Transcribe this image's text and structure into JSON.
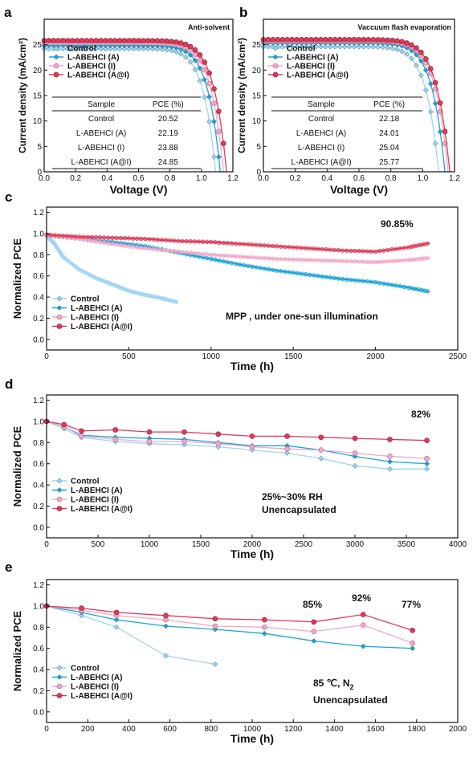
{
  "colors": {
    "control": "#9fd4ee",
    "a": "#1aa3d8",
    "i": "#f2a8c8",
    "ai": "#e03a5a"
  },
  "chart_data": [
    {
      "type": "line",
      "panel_label": "a",
      "title": "Anti-solvent",
      "xlabel": "Voltage (V)",
      "ylabel": "Current density (mA/cm²)",
      "xlim": [
        0.0,
        1.2
      ],
      "ylim": [
        0,
        30
      ],
      "xticks": [
        "0.0",
        "0.2",
        "0.4",
        "0.6",
        "0.8",
        "1.0",
        "1.2"
      ],
      "yticks": [
        "0",
        "5",
        "10",
        "15",
        "20",
        "25"
      ],
      "legend": [
        "Control",
        "L-ABEHCI (A)",
        "L-ABEHCI (I)",
        "L-ABEHCI (A@I)"
      ],
      "legend_position": "top-left",
      "series": [
        {
          "name": "Control",
          "jsc": 24.2,
          "voc": 1.09
        },
        {
          "name": "L-ABEHCI (A)",
          "jsc": 24.8,
          "voc": 1.12
        },
        {
          "name": "L-ABEHCI (I)",
          "jsc": 25.4,
          "voc": 1.14
        },
        {
          "name": "L-ABEHCI (A@I)",
          "jsc": 25.8,
          "voc": 1.16
        }
      ],
      "table": {
        "headers": [
          "Sample",
          "PCE   (%)"
        ],
        "rows": [
          [
            "Control",
            "20.52"
          ],
          [
            "L-ABEHCI (A)",
            "22.19"
          ],
          [
            "L-ABEHCI (I)",
            "23.88"
          ],
          [
            "L-ABEHCI (A@I)",
            "24.85"
          ]
        ]
      }
    },
    {
      "type": "line",
      "panel_label": "b",
      "title": "Vaccuum flash evaporation",
      "xlabel": "Voltage (V)",
      "ylabel": "Current density (mA/cm²)",
      "xlim": [
        0.0,
        1.2
      ],
      "ylim": [
        0,
        30
      ],
      "xticks": [
        "0.0",
        "0.2",
        "0.4",
        "0.6",
        "0.8",
        "1.0",
        "1.2"
      ],
      "yticks": [
        "0",
        "5",
        "10",
        "15",
        "20",
        "25"
      ],
      "legend": [
        "Control",
        "L-ABEHCI (A)",
        "L-ABEHCI (I)",
        "L-ABEHCI (A@I)"
      ],
      "legend_position": "top-left",
      "series": [
        {
          "name": "Control",
          "jsc": 24.6,
          "voc": 1.1
        },
        {
          "name": "L-ABEHCI (A)",
          "jsc": 25.3,
          "voc": 1.14
        },
        {
          "name": "L-ABEHCI (I)",
          "jsc": 25.7,
          "voc": 1.16
        },
        {
          "name": "L-ABEHCI (A@I)",
          "jsc": 26.0,
          "voc": 1.17
        }
      ],
      "table": {
        "headers": [
          "Sample",
          "PCE   (%)"
        ],
        "rows": [
          [
            "Control",
            "22.18"
          ],
          [
            "L-ABEHCI (A)",
            "24.01"
          ],
          [
            "L-ABEHCI (I)",
            "25.04"
          ],
          [
            "L-ABEHCI (A@I)",
            "25.77"
          ]
        ]
      }
    },
    {
      "type": "scatter",
      "panel_label": "c",
      "xlabel": "Time (h)",
      "ylabel": "Normalized PCE",
      "xlim": [
        0,
        2500
      ],
      "ylim": [
        -0.1,
        1.25
      ],
      "xticks": [
        "0",
        "500",
        "1000",
        "1500",
        "2000",
        "2500"
      ],
      "yticks": [
        "0.0",
        "0.2",
        "0.4",
        "0.6",
        "0.8",
        "1.0",
        "1.2"
      ],
      "legend": [
        "Control",
        "L-ABEHCI (A)",
        "L-ABEHCI (I)",
        "L-ABEHCI (A@I)"
      ],
      "legend_position": "bottom-left",
      "annotations": [
        "90.85%",
        "MPP , under one-sun illumination"
      ],
      "series": [
        {
          "name": "Control",
          "x": [
            0,
            50,
            100,
            200,
            300,
            400,
            500,
            600,
            700,
            800
          ],
          "y": [
            0.98,
            0.9,
            0.78,
            0.66,
            0.58,
            0.52,
            0.46,
            0.42,
            0.39,
            0.35
          ]
        },
        {
          "name": "L-ABEHCI (A)",
          "x": [
            0,
            200,
            400,
            600,
            800,
            1000,
            1200,
            1400,
            1600,
            1800,
            2000,
            2200,
            2330
          ],
          "y": [
            0.98,
            0.95,
            0.92,
            0.88,
            0.82,
            0.76,
            0.7,
            0.65,
            0.61,
            0.57,
            0.54,
            0.49,
            0.45
          ]
        },
        {
          "name": "L-ABEHCI (I)",
          "x": [
            0,
            200,
            400,
            600,
            800,
            1000,
            1200,
            1400,
            1600,
            1800,
            2000,
            2200,
            2330
          ],
          "y": [
            0.98,
            0.95,
            0.9,
            0.86,
            0.83,
            0.8,
            0.78,
            0.76,
            0.75,
            0.74,
            0.73,
            0.75,
            0.77
          ]
        },
        {
          "name": "L-ABEHCI (A@I)",
          "x": [
            0,
            200,
            400,
            600,
            800,
            1000,
            1200,
            1400,
            1600,
            1800,
            2000,
            2200,
            2330
          ],
          "y": [
            0.99,
            0.97,
            0.96,
            0.95,
            0.93,
            0.92,
            0.9,
            0.88,
            0.86,
            0.84,
            0.83,
            0.87,
            0.91
          ]
        }
      ]
    },
    {
      "type": "line",
      "panel_label": "d",
      "xlabel": "Time (h)",
      "ylabel": "Normalized PCE",
      "xlim": [
        0,
        4000
      ],
      "ylim": [
        -0.1,
        1.25
      ],
      "xticks": [
        "0",
        "500",
        "1000",
        "1500",
        "2000",
        "2500",
        "3000",
        "3500",
        "4000"
      ],
      "yticks": [
        "0.0",
        "0.2",
        "0.4",
        "0.6",
        "0.8",
        "1.0",
        "1.2"
      ],
      "legend": [
        "Control",
        "L-ABEHCI (A)",
        "L-ABEHCI (I)",
        "L-ABEHCI (A@I)"
      ],
      "legend_position": "bottom-left",
      "annotations": [
        "82%",
        "25%~30% RH",
        "Unencapsulated"
      ],
      "x": [
        0,
        170,
        340,
        670,
        1000,
        1340,
        1670,
        2000,
        2340,
        2670,
        3000,
        3340,
        3700
      ],
      "series": [
        {
          "name": "Control",
          "values": [
            1.0,
            0.93,
            0.85,
            0.81,
            0.79,
            0.78,
            0.76,
            0.73,
            0.7,
            0.65,
            0.58,
            0.55,
            0.55
          ]
        },
        {
          "name": "L-ABEHCI (A)",
          "values": [
            1.0,
            0.95,
            0.87,
            0.85,
            0.84,
            0.83,
            0.8,
            0.77,
            0.77,
            0.73,
            0.67,
            0.62,
            0.6
          ]
        },
        {
          "name": "L-ABEHCI (I)",
          "values": [
            1.0,
            0.95,
            0.86,
            0.83,
            0.81,
            0.81,
            0.79,
            0.76,
            0.74,
            0.73,
            0.7,
            0.67,
            0.65
          ]
        },
        {
          "name": "L-ABEHCI (A@I)",
          "values": [
            1.0,
            0.97,
            0.91,
            0.92,
            0.9,
            0.9,
            0.88,
            0.86,
            0.86,
            0.85,
            0.84,
            0.83,
            0.82
          ]
        }
      ]
    },
    {
      "type": "line",
      "panel_label": "e",
      "xlabel": "Time (h)",
      "ylabel": "Normalized PCE",
      "xlim": [
        0,
        2000
      ],
      "ylim": [
        -0.1,
        1.25
      ],
      "xticks": [
        "0",
        "200",
        "400",
        "600",
        "800",
        "1000",
        "1200",
        "1400",
        "1600",
        "1800",
        "2000"
      ],
      "yticks": [
        "0.0",
        "0.2",
        "0.4",
        "0.6",
        "0.8",
        "1.0",
        "1.2"
      ],
      "legend": [
        "Control",
        "L-ABEHCI (A)",
        "L-ABEHCI (I)",
        "L-ABEHCI (A@I)"
      ],
      "legend_position": "bottom-left",
      "annotations": [
        "85%",
        "92%",
        "77%",
        "85 ℃,  N",
        "Unencapsulated"
      ],
      "annotation_subscript": "2",
      "series": [
        {
          "name": "Control",
          "x": [
            0,
            170,
            340,
            580,
            820
          ],
          "y": [
            1.0,
            0.91,
            0.8,
            0.53,
            0.45
          ]
        },
        {
          "name": "L-ABEHCI (A)",
          "x": [
            0,
            170,
            340,
            580,
            820,
            1060,
            1300,
            1540,
            1780
          ],
          "y": [
            1.0,
            0.94,
            0.87,
            0.81,
            0.78,
            0.74,
            0.67,
            0.62,
            0.6
          ]
        },
        {
          "name": "L-ABEHCI (I)",
          "x": [
            0,
            170,
            340,
            580,
            820,
            1060,
            1300,
            1540,
            1780
          ],
          "y": [
            1.0,
            0.96,
            0.91,
            0.87,
            0.81,
            0.8,
            0.76,
            0.82,
            0.65
          ]
        },
        {
          "name": "L-ABEHCI (A@I)",
          "x": [
            0,
            170,
            340,
            580,
            820,
            1060,
            1300,
            1540,
            1780
          ],
          "y": [
            1.0,
            0.98,
            0.94,
            0.91,
            0.88,
            0.87,
            0.85,
            0.92,
            0.77
          ]
        }
      ]
    }
  ]
}
